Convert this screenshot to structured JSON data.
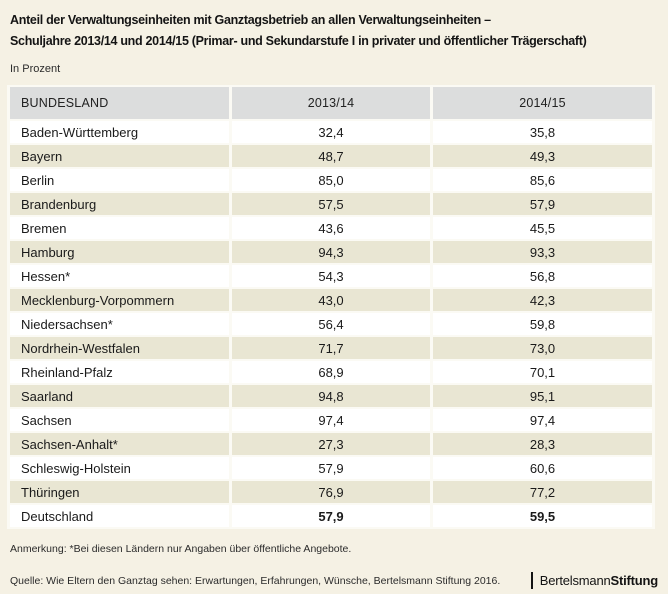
{
  "colors": {
    "page_background": "#f5f1e4",
    "header_row": "#dcdddd",
    "stripe_row": "#e9e6d3",
    "white_row": "#ffffff",
    "text": "#1a1a1a"
  },
  "chart_data": {
    "type": "table",
    "title": "Anteil der Verwaltungseinheiten mit Ganztagsbetrieb an allen Verwaltungseinheiten – Schuljahre 2013/14 und 2014/15 (Primar- und Sekundarstufe I in privater und öffentlicher Trägerschaft)",
    "title_lines": [
      "Anteil der Verwaltungseinheiten mit Ganztagsbetrieb an allen Verwaltungseinheiten –",
      "Schuljahre 2013/14 und 2014/15 (Primar- und Sekundarstufe I in privater und öffentlicher Trägerschaft)"
    ],
    "unit": "In Prozent",
    "columns": [
      "BUNDESLAND",
      "2013/14",
      "2014/15"
    ],
    "rows": [
      {
        "bundesland": "Baden-Württemberg",
        "values": [
          "32,4",
          "35,8"
        ]
      },
      {
        "bundesland": "Bayern",
        "values": [
          "48,7",
          "49,3"
        ]
      },
      {
        "bundesland": "Berlin",
        "values": [
          "85,0",
          "85,6"
        ]
      },
      {
        "bundesland": "Brandenburg",
        "values": [
          "57,5",
          "57,9"
        ]
      },
      {
        "bundesland": "Bremen",
        "values": [
          "43,6",
          "45,5"
        ]
      },
      {
        "bundesland": "Hamburg",
        "values": [
          "94,3",
          "93,3"
        ]
      },
      {
        "bundesland": "Hessen*",
        "values": [
          "54,3",
          "56,8"
        ]
      },
      {
        "bundesland": "Mecklenburg-Vorpommern",
        "values": [
          "43,0",
          "42,3"
        ]
      },
      {
        "bundesland": "Niedersachsen*",
        "values": [
          "56,4",
          "59,8"
        ]
      },
      {
        "bundesland": "Nordrhein-Westfalen",
        "values": [
          "71,7",
          "73,0"
        ]
      },
      {
        "bundesland": "Rheinland-Pfalz",
        "values": [
          "68,9",
          "70,1"
        ]
      },
      {
        "bundesland": "Saarland",
        "values": [
          "94,8",
          "95,1"
        ]
      },
      {
        "bundesland": "Sachsen",
        "values": [
          "97,4",
          "97,4"
        ]
      },
      {
        "bundesland": "Sachsen-Anhalt*",
        "values": [
          "27,3",
          "28,3"
        ]
      },
      {
        "bundesland": "Schleswig-Holstein",
        "values": [
          "57,9",
          "60,6"
        ]
      },
      {
        "bundesland": "Thüringen",
        "values": [
          "76,9",
          "77,2"
        ]
      },
      {
        "bundesland": "Deutschland",
        "values": [
          "57,9",
          "59,5"
        ],
        "emphasis": true
      }
    ],
    "note": "Anmerkung: *Bei diesen Ländern nur Angaben über öffentliche Angebote.",
    "source": "Quelle: Wie Eltern den Ganztag sehen: Erwartungen, Erfahrungen, Wünsche, Bertelsmann Stiftung 2016."
  },
  "logo": {
    "name": "Bertelsmann",
    "suffix": "Stiftung"
  }
}
